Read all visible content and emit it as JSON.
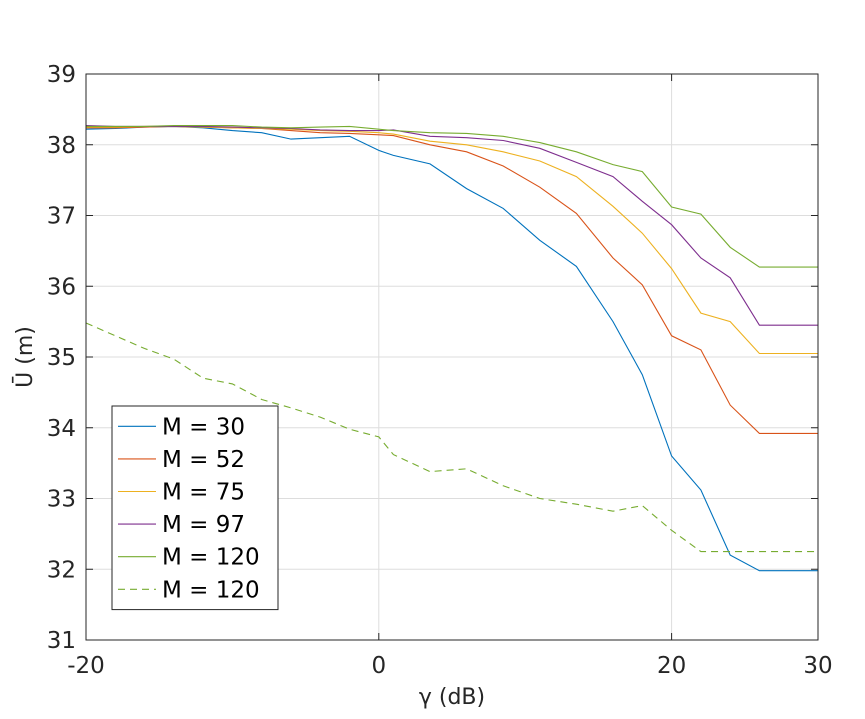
{
  "chart_data": {
    "type": "line",
    "title": "",
    "xlabel": "γ (dB)",
    "ylabel": "Ū (m)",
    "xlim": [
      -20,
      30
    ],
    "ylim": [
      31,
      39
    ],
    "xticks": [
      "-20",
      "0",
      "20",
      "30"
    ],
    "yticks": [
      "31",
      "32",
      "33",
      "34",
      "35",
      "36",
      "37",
      "38",
      "39"
    ],
    "grid": true,
    "legend_position": "bottom-left",
    "x": [
      -20,
      -18,
      -16,
      -14,
      -12,
      -10,
      -8,
      -6,
      -4,
      -2,
      0,
      1,
      3.5,
      6,
      8.5,
      11,
      13.5,
      16,
      18,
      20,
      22,
      24,
      26,
      28,
      30
    ],
    "series": [
      {
        "name": "M = 30",
        "color": "#0072BD",
        "dash": "solid",
        "values": [
          38.22,
          38.23,
          38.25,
          38.26,
          38.24,
          38.2,
          38.17,
          38.08,
          38.1,
          38.12,
          37.92,
          37.85,
          37.73,
          37.38,
          37.1,
          36.65,
          36.28,
          35.5,
          34.75,
          33.6,
          33.12,
          32.2,
          31.98,
          31.98,
          31.98
        ]
      },
      {
        "name": "M = 52",
        "color": "#D95319",
        "dash": "solid",
        "values": [
          38.24,
          38.24,
          38.25,
          38.26,
          38.25,
          38.24,
          38.23,
          38.2,
          38.17,
          38.16,
          38.14,
          38.13,
          38.0,
          37.9,
          37.7,
          37.4,
          37.03,
          36.4,
          36.02,
          35.3,
          35.1,
          34.32,
          33.92,
          33.92,
          33.92
        ]
      },
      {
        "name": "M = 75",
        "color": "#EDB120",
        "dash": "solid",
        "values": [
          38.25,
          38.25,
          38.26,
          38.26,
          38.25,
          38.24,
          38.23,
          38.22,
          38.2,
          38.19,
          38.17,
          38.15,
          38.05,
          38.0,
          37.9,
          37.77,
          37.55,
          37.13,
          36.75,
          36.25,
          35.62,
          35.5,
          35.05,
          35.05,
          35.05
        ]
      },
      {
        "name": "M = 97",
        "color": "#7E2F8E",
        "dash": "solid",
        "values": [
          38.27,
          38.26,
          38.26,
          38.26,
          38.26,
          38.25,
          38.24,
          38.23,
          38.21,
          38.2,
          38.2,
          38.21,
          38.12,
          38.1,
          38.06,
          37.95,
          37.75,
          37.55,
          37.2,
          36.87,
          36.4,
          36.12,
          35.45,
          35.45,
          35.45
        ]
      },
      {
        "name": "M = 120",
        "color": "#77AC30",
        "dash": "solid",
        "values": [
          38.26,
          38.26,
          38.26,
          38.27,
          38.27,
          38.27,
          38.25,
          38.24,
          38.25,
          38.26,
          38.22,
          38.2,
          38.17,
          38.16,
          38.12,
          38.03,
          37.9,
          37.72,
          37.62,
          37.12,
          37.02,
          36.55,
          36.27,
          36.27,
          36.27
        ]
      },
      {
        "name": "M = 120",
        "color": "#77AC30",
        "dash": "dashed",
        "values": [
          35.48,
          35.3,
          35.12,
          34.97,
          34.7,
          34.62,
          34.4,
          34.28,
          34.15,
          33.98,
          33.87,
          33.62,
          33.38,
          33.42,
          33.18,
          33.0,
          32.92,
          32.82,
          32.9,
          32.55,
          32.25,
          32.25,
          32.25,
          32.25,
          32.25
        ]
      }
    ]
  }
}
